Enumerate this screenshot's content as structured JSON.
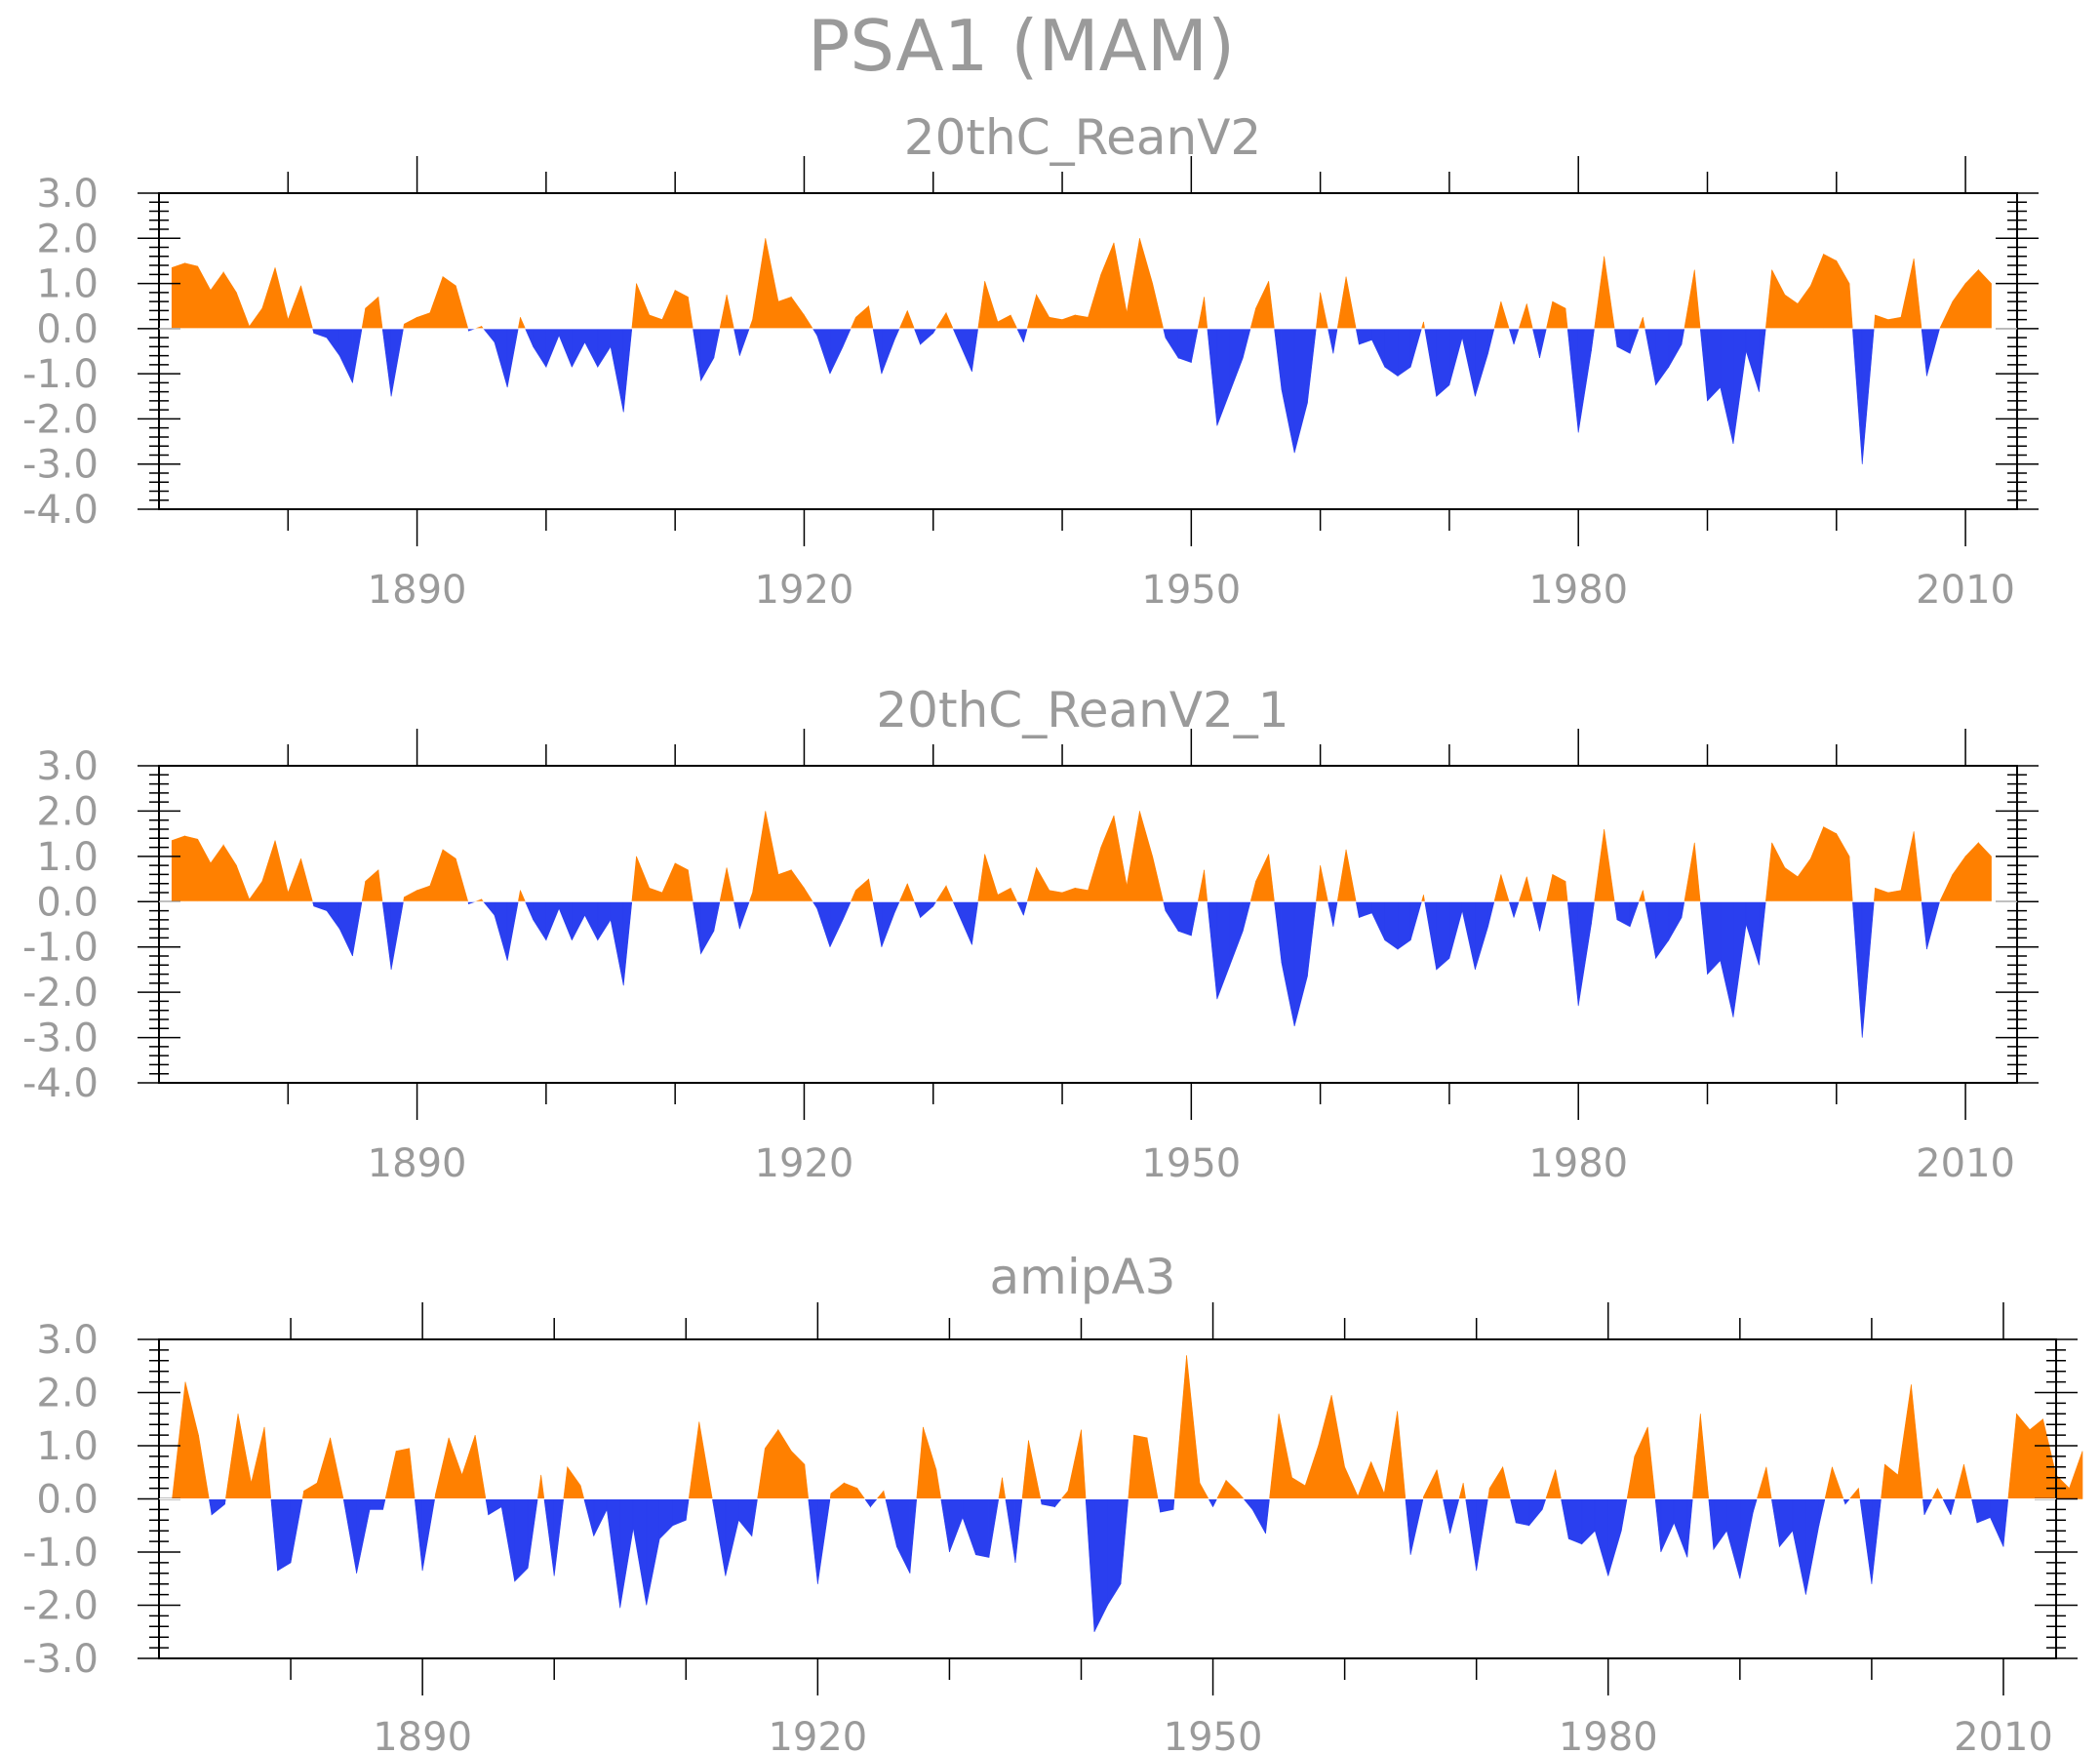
{
  "figure": {
    "title": "PSA1  (MAM)"
  },
  "colors": {
    "positive": "#ff8000",
    "negative": "#2a3fef",
    "axis": "#000000",
    "text": "#9a9a9a"
  },
  "chart_data": [
    {
      "type": "area",
      "title": "20thC_ReanV2",
      "x_start": 1871,
      "x_step": 1,
      "xlim": [
        1870,
        2014
      ],
      "xticks": [
        1890,
        1920,
        1950,
        1980,
        2010
      ],
      "ylim": [
        -4.0,
        3.0
      ],
      "yticks": [
        3.0,
        2.0,
        1.0,
        0.0,
        -1.0,
        -2.0,
        -3.0,
        -4.0
      ],
      "ytick_labels": [
        "3.0",
        "2.0",
        "1.0",
        "0.0",
        "-1.0",
        "-2.0",
        "-3.0",
        "-4.0"
      ],
      "xtick_labels": [
        "1890",
        "1920",
        "1950",
        "1980",
        "2010"
      ],
      "values": [
        1.35,
        1.45,
        1.38,
        0.85,
        1.25,
        0.8,
        0.05,
        0.45,
        1.35,
        0.2,
        0.95,
        -0.1,
        -0.2,
        -0.6,
        -1.2,
        0.45,
        0.7,
        -1.5,
        0.1,
        0.25,
        0.35,
        1.15,
        0.95,
        -0.05,
        0.05,
        -0.3,
        -1.3,
        0.25,
        -0.4,
        -0.85,
        -0.15,
        -0.85,
        -0.3,
        -0.85,
        -0.4,
        -1.85,
        1.0,
        0.3,
        0.2,
        0.85,
        0.7,
        -1.15,
        -0.65,
        0.75,
        -0.6,
        0.2,
        2.0,
        0.6,
        0.7,
        0.3,
        -0.15,
        -1.0,
        -0.4,
        0.25,
        0.5,
        -1.0,
        -0.25,
        0.4,
        -0.35,
        -0.1,
        0.35,
        -0.3,
        -0.95,
        1.05,
        0.15,
        0.3,
        -0.3,
        0.75,
        0.25,
        0.2,
        0.3,
        0.25,
        1.2,
        1.9,
        0.35,
        2.0,
        1.0,
        -0.2,
        -0.65,
        -0.75,
        0.7,
        -2.15,
        -1.4,
        -0.65,
        0.45,
        1.05,
        -1.35,
        -2.75,
        -1.65,
        0.8,
        -0.55,
        1.15,
        -0.35,
        -0.25,
        -0.85,
        -1.05,
        -0.85,
        0.15,
        -1.5,
        -1.25,
        -0.2,
        -1.5,
        -0.55,
        0.6,
        -0.35,
        0.55,
        -0.65,
        0.6,
        0.45,
        -2.3,
        -0.5,
        1.6,
        -0.4,
        -0.55,
        0.25,
        -1.25,
        -0.85,
        -0.35,
        1.3,
        -1.6,
        -1.3,
        -2.55,
        -0.5,
        -1.4,
        1.3,
        0.75,
        0.55,
        0.95,
        1.65,
        1.5,
        1.0,
        -3.0,
        0.3,
        0.2,
        0.25,
        1.55,
        -1.05,
        0.0,
        0.6,
        1.0,
        1.3,
        1.0
      ]
    },
    {
      "type": "area",
      "title": "20thC_ReanV2_1",
      "x_start": 1871,
      "x_step": 1,
      "xlim": [
        1870,
        2014
      ],
      "xticks": [
        1890,
        1920,
        1950,
        1980,
        2010
      ],
      "ylim": [
        -4.0,
        3.0
      ],
      "yticks": [
        3.0,
        2.0,
        1.0,
        0.0,
        -1.0,
        -2.0,
        -3.0,
        -4.0
      ],
      "ytick_labels": [
        "3.0",
        "2.0",
        "1.0",
        "0.0",
        "-1.0",
        "-2.0",
        "-3.0",
        "-4.0"
      ],
      "xtick_labels": [
        "1890",
        "1920",
        "1950",
        "1980",
        "2010"
      ],
      "values": [
        1.35,
        1.45,
        1.38,
        0.85,
        1.25,
        0.8,
        0.05,
        0.45,
        1.35,
        0.2,
        0.95,
        -0.1,
        -0.2,
        -0.6,
        -1.2,
        0.45,
        0.7,
        -1.5,
        0.1,
        0.25,
        0.35,
        1.15,
        0.95,
        -0.05,
        0.05,
        -0.3,
        -1.3,
        0.25,
        -0.4,
        -0.85,
        -0.15,
        -0.85,
        -0.3,
        -0.85,
        -0.4,
        -1.85,
        1.0,
        0.3,
        0.2,
        0.85,
        0.7,
        -1.15,
        -0.65,
        0.75,
        -0.6,
        0.2,
        2.0,
        0.6,
        0.7,
        0.3,
        -0.15,
        -1.0,
        -0.4,
        0.25,
        0.5,
        -1.0,
        -0.25,
        0.4,
        -0.35,
        -0.1,
        0.35,
        -0.3,
        -0.95,
        1.05,
        0.15,
        0.3,
        -0.3,
        0.75,
        0.25,
        0.2,
        0.3,
        0.25,
        1.2,
        1.9,
        0.35,
        2.0,
        1.0,
        -0.2,
        -0.65,
        -0.75,
        0.7,
        -2.15,
        -1.4,
        -0.65,
        0.45,
        1.05,
        -1.35,
        -2.75,
        -1.65,
        0.8,
        -0.55,
        1.15,
        -0.35,
        -0.25,
        -0.85,
        -1.05,
        -0.85,
        0.15,
        -1.5,
        -1.25,
        -0.2,
        -1.5,
        -0.55,
        0.6,
        -0.35,
        0.55,
        -0.65,
        0.6,
        0.45,
        -2.3,
        -0.5,
        1.6,
        -0.4,
        -0.55,
        0.25,
        -1.25,
        -0.85,
        -0.35,
        1.3,
        -1.6,
        -1.3,
        -2.55,
        -0.5,
        -1.4,
        1.3,
        0.75,
        0.55,
        0.95,
        1.65,
        1.5,
        1.0,
        -3.0,
        0.3,
        0.2,
        0.25,
        1.55,
        -1.05,
        0.0,
        0.6,
        1.0,
        1.3,
        1.0
      ]
    },
    {
      "type": "area",
      "title": "amipA3",
      "x_start": 1871,
      "x_step": 1,
      "xlim": [
        1870,
        2014
      ],
      "xticks": [
        1890,
        1920,
        1950,
        1980,
        2010
      ],
      "ylim": [
        -3.0,
        3.0
      ],
      "yticks": [
        3.0,
        2.0,
        1.0,
        0.0,
        -1.0,
        -2.0,
        -3.0
      ],
      "ytick_labels": [
        "3.0",
        "2.0",
        "1.0",
        "0.0",
        "-1.0",
        "-2.0",
        "-3.0"
      ],
      "xtick_labels": [
        "1890",
        "1920",
        "1950",
        "1980",
        "2010"
      ],
      "values": [
        0.0,
        2.2,
        1.2,
        -0.3,
        -0.1,
        1.6,
        0.3,
        1.35,
        -1.35,
        -1.2,
        0.15,
        0.3,
        1.15,
        0.0,
        -1.4,
        -0.2,
        -0.2,
        0.9,
        0.95,
        -1.35,
        0.1,
        1.15,
        0.45,
        1.2,
        -0.3,
        -0.15,
        -1.55,
        -1.3,
        0.45,
        -1.45,
        0.6,
        0.25,
        -0.7,
        -0.2,
        -2.05,
        -0.55,
        -2.0,
        -0.75,
        -0.5,
        -0.4,
        1.45,
        0.0,
        -1.45,
        -0.4,
        -0.7,
        0.95,
        1.3,
        0.9,
        0.65,
        -1.6,
        0.1,
        0.3,
        0.2,
        -0.15,
        0.15,
        -0.9,
        -1.4,
        1.35,
        0.55,
        -1.0,
        -0.35,
        -1.05,
        -1.1,
        0.4,
        -1.2,
        1.1,
        -0.1,
        -0.15,
        0.15,
        1.3,
        -2.5,
        -2.0,
        -1.6,
        1.2,
        1.15,
        -0.25,
        -0.2,
        2.7,
        0.3,
        -0.15,
        0.35,
        0.1,
        -0.2,
        -0.65,
        1.6,
        0.4,
        0.25,
        1.0,
        1.95,
        0.6,
        0.05,
        0.7,
        0.1,
        1.65,
        -1.05,
        0.05,
        0.55,
        -0.65,
        0.3,
        -1.35,
        0.2,
        0.6,
        -0.45,
        -0.5,
        -0.2,
        0.55,
        -0.75,
        -0.85,
        -0.6,
        -1.45,
        -0.6,
        0.8,
        1.35,
        -1.0,
        -0.45,
        -1.1,
        1.6,
        -0.95,
        -0.6,
        -1.5,
        -0.25,
        0.6,
        -0.9,
        -0.6,
        -1.8,
        -0.5,
        0.6,
        -0.1,
        0.2,
        -1.6,
        0.65,
        0.45,
        2.15,
        -0.3,
        0.2,
        -0.3,
        0.65,
        -0.45,
        -0.35,
        -0.9,
        1.6,
        1.3,
        1.5,
        0.45,
        0.2,
        0.9
      ]
    }
  ]
}
